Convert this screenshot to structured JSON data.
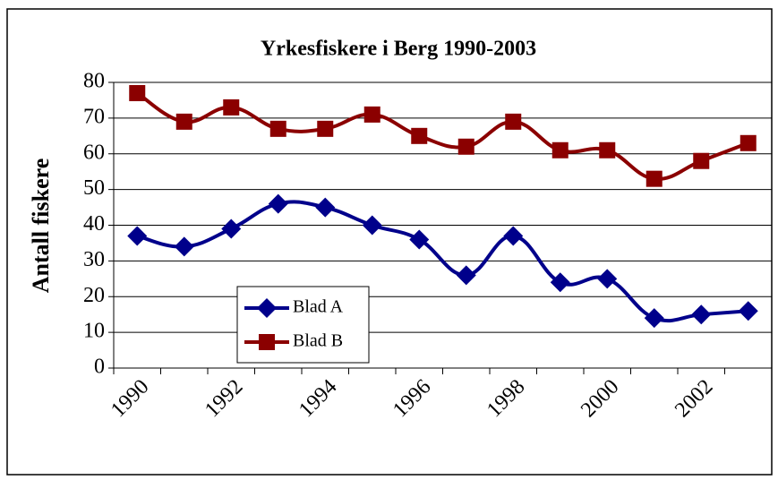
{
  "chart_data": {
    "type": "line",
    "title": "Yrkesfiskere i Berg 1990-2003",
    "y_label": "Antall fiskere",
    "categories": [
      "1990",
      null,
      "1992",
      null,
      "1994",
      null,
      "1996",
      null,
      "1998",
      null,
      "2000",
      null,
      "2002",
      null
    ],
    "series": [
      {
        "name": "Blad A",
        "color": "#00008b",
        "marker": "diamond",
        "values": [
          37,
          34,
          39,
          46,
          45,
          40,
          36,
          26,
          37,
          24,
          25,
          14,
          15,
          16
        ]
      },
      {
        "name": "Blad B",
        "color": "#8b0000",
        "marker": "square",
        "values": [
          77,
          69,
          73,
          67,
          67,
          71,
          65,
          62,
          69,
          61,
          61,
          53,
          58,
          63
        ]
      }
    ],
    "ylim": [
      0,
      80
    ],
    "yticks": [
      0,
      10,
      20,
      30,
      40,
      50,
      60,
      70,
      80
    ],
    "grid": true,
    "legend": "lower-left"
  }
}
